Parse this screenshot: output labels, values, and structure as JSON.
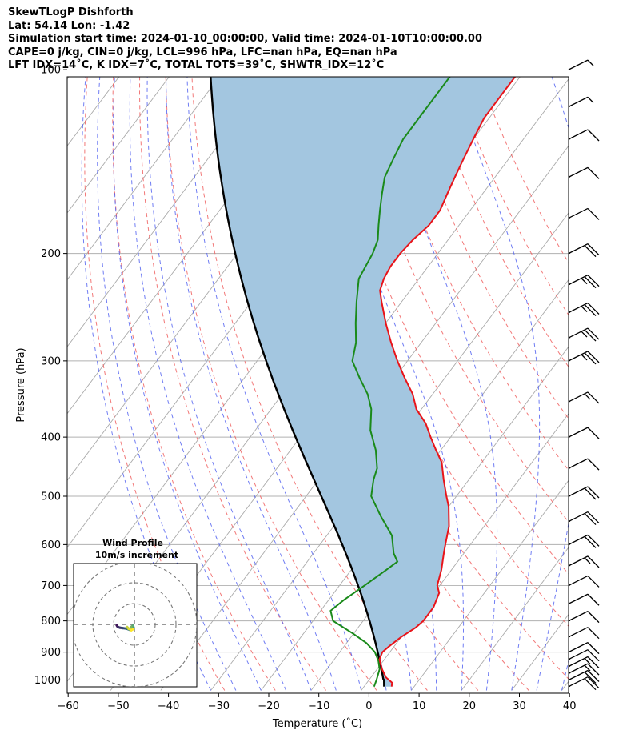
{
  "header": {
    "line1": "SkewTLogP Dishforth",
    "line2": "Lat: 54.14   Lon: -1.42",
    "line3": "Simulation start time: 2024-01-10_00:00:00, Valid time: 2024-01-10T10:00:00.00",
    "line4": "CAPE=0 j/kg, CIN=0 j/kg, LCL=996 hPa, LFC=nan hPa, EQ=nan hPa",
    "line5": "LFT IDX=14˚C, K IDX=7˚C, TOTAL TOTS=39˚C, SHWTR_IDX=12˚C"
  },
  "colors": {
    "temperature": "#e8141a",
    "dewpoint": "#1a8a1a",
    "parcel": "#000000",
    "cape_fill": "#a3c6e0",
    "dry_adiabat": "#f06060",
    "moist_adiabat": "#4c5cf0",
    "isotherm": "#aaaaaa",
    "grid": "#b0b0b0"
  },
  "chart_data": [
    {
      "type": "skewt-logp",
      "title": "SkewTLogP Dishforth",
      "xlabel": "Temperature (˚C)",
      "ylabel": "Pressure (hPa)",
      "xlim": [
        -60,
        40
      ],
      "ylim": [
        1040,
        100
      ],
      "xticks": [
        "−60",
        "−50",
        "−40",
        "−30",
        "−20",
        "−10",
        "0",
        "10",
        "20",
        "30",
        "40"
      ],
      "yticks": [
        "100",
        "200",
        "300",
        "400",
        "500",
        "600",
        "700",
        "800",
        "900",
        "1000"
      ],
      "series": [
        {
          "name": "temperature",
          "points": [
            [
              1025,
              5.5
            ],
            [
              1010,
              5
            ],
            [
              990,
              3
            ],
            [
              960,
              1
            ],
            [
              925,
              -1
            ],
            [
              900,
              -1.5
            ],
            [
              880,
              -1
            ],
            [
              850,
              0
            ],
            [
              820,
              1.5
            ],
            [
              800,
              2
            ],
            [
              760,
              2
            ],
            [
              720,
              1
            ],
            [
              700,
              -0.5
            ],
            [
              660,
              -2
            ],
            [
              620,
              -4
            ],
            [
              600,
              -5
            ],
            [
              560,
              -7
            ],
            [
              520,
              -10
            ],
            [
              500,
              -12
            ],
            [
              470,
              -15
            ],
            [
              440,
              -18
            ],
            [
              420,
              -21
            ],
            [
              400,
              -24
            ],
            [
              380,
              -27
            ],
            [
              360,
              -31
            ],
            [
              340,
              -34
            ],
            [
              320,
              -38
            ],
            [
              300,
              -42
            ],
            [
              280,
              -46
            ],
            [
              260,
              -50
            ],
            [
              240,
              -54
            ],
            [
              230,
              -56
            ],
            [
              220,
              -57
            ],
            [
              210,
              -57.5
            ],
            [
              200,
              -57.5
            ],
            [
              190,
              -57
            ],
            [
              180,
              -56
            ],
            [
              170,
              -56
            ],
            [
              160,
              -57
            ],
            [
              150,
              -58
            ],
            [
              140,
              -59
            ],
            [
              130,
              -60
            ],
            [
              120,
              -61
            ],
            [
              110,
              -61
            ],
            [
              100,
              -61
            ]
          ]
        },
        {
          "name": "dewpoint",
          "points": [
            [
              1025,
              2
            ],
            [
              1000,
              1.5
            ],
            [
              960,
              0.5
            ],
            [
              930,
              -1
            ],
            [
              900,
              -3
            ],
            [
              870,
              -6
            ],
            [
              840,
              -10
            ],
            [
              800,
              -16
            ],
            [
              770,
              -18
            ],
            [
              740,
              -17
            ],
            [
              700,
              -15
            ],
            [
              660,
              -13
            ],
            [
              640,
              -12
            ],
            [
              620,
              -14
            ],
            [
              580,
              -17
            ],
            [
              540,
              -22
            ],
            [
              500,
              -27
            ],
            [
              470,
              -29
            ],
            [
              450,
              -30
            ],
            [
              420,
              -33
            ],
            [
              390,
              -37
            ],
            [
              360,
              -40
            ],
            [
              340,
              -43
            ],
            [
              320,
              -47
            ],
            [
              300,
              -51
            ],
            [
              280,
              -53
            ],
            [
              260,
              -56
            ],
            [
              240,
              -59
            ],
            [
              220,
              -62
            ],
            [
              200,
              -63
            ],
            [
              190,
              -64
            ],
            [
              180,
              -66
            ],
            [
              170,
              -68
            ],
            [
              160,
              -70
            ],
            [
              150,
              -72
            ],
            [
              140,
              -73
            ],
            [
              130,
              -74
            ],
            [
              120,
              -74
            ],
            [
              110,
              -74
            ],
            [
              100,
              -74
            ]
          ]
        },
        {
          "name": "parcel",
          "points": [
            [
              1025,
              4
            ],
            [
              1000,
              3
            ],
            [
              996,
              2.7
            ]
          ]
        }
      ],
      "inset": {
        "title": "Wind Profile",
        "subtitle": "10m/s increment",
        "rings_ms": [
          10,
          20,
          30
        ]
      },
      "wind_barbs": [
        {
          "p": 1025,
          "speed_kt": 20
        },
        {
          "p": 1000,
          "speed_kt": 20
        },
        {
          "p": 975,
          "speed_kt": 15
        },
        {
          "p": 950,
          "speed_kt": 15
        },
        {
          "p": 925,
          "speed_kt": 10
        },
        {
          "p": 900,
          "speed_kt": 10
        },
        {
          "p": 850,
          "speed_kt": 10
        },
        {
          "p": 800,
          "speed_kt": 10
        },
        {
          "p": 750,
          "speed_kt": 10
        },
        {
          "p": 700,
          "speed_kt": 10
        },
        {
          "p": 650,
          "speed_kt": 15
        },
        {
          "p": 600,
          "speed_kt": 20
        },
        {
          "p": 550,
          "speed_kt": 20
        },
        {
          "p": 500,
          "speed_kt": 20
        },
        {
          "p": 450,
          "speed_kt": 10
        },
        {
          "p": 400,
          "speed_kt": 10
        },
        {
          "p": 350,
          "speed_kt": 15
        },
        {
          "p": 300,
          "speed_kt": 25
        },
        {
          "p": 275,
          "speed_kt": 25
        },
        {
          "p": 250,
          "speed_kt": 25
        },
        {
          "p": 225,
          "speed_kt": 25
        },
        {
          "p": 200,
          "speed_kt": 20
        },
        {
          "p": 175,
          "speed_kt": 10
        },
        {
          "p": 150,
          "speed_kt": 10
        },
        {
          "p": 130,
          "speed_kt": 10
        },
        {
          "p": 115,
          "speed_kt": 5
        },
        {
          "p": 100,
          "speed_kt": 5
        }
      ]
    }
  ]
}
